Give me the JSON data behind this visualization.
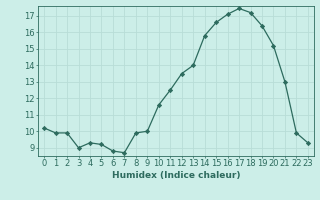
{
  "x": [
    0,
    1,
    2,
    3,
    4,
    5,
    6,
    7,
    8,
    9,
    10,
    11,
    12,
    13,
    14,
    15,
    16,
    17,
    18,
    19,
    20,
    21,
    22,
    23
  ],
  "y": [
    10.2,
    9.9,
    9.9,
    9.0,
    9.3,
    9.2,
    8.8,
    8.7,
    9.9,
    10.0,
    11.6,
    12.5,
    13.5,
    14.0,
    15.8,
    16.6,
    17.1,
    17.45,
    17.2,
    16.4,
    15.2,
    13.0,
    9.9,
    9.3
  ],
  "line_color": "#2d6b5e",
  "marker": "D",
  "marker_size": 2.2,
  "bg_color": "#cceee8",
  "grid_color": "#b8ddd7",
  "xlabel": "Humidex (Indice chaleur)",
  "xlim": [
    -0.5,
    23.5
  ],
  "ylim": [
    8.5,
    17.6
  ],
  "yticks": [
    9,
    10,
    11,
    12,
    13,
    14,
    15,
    16,
    17
  ],
  "xticks": [
    0,
    1,
    2,
    3,
    4,
    5,
    6,
    7,
    8,
    9,
    10,
    11,
    12,
    13,
    14,
    15,
    16,
    17,
    18,
    19,
    20,
    21,
    22,
    23
  ],
  "xlabel_fontsize": 6.5,
  "tick_fontsize": 6,
  "line_color_hex": "#2d6b5e",
  "spine_color": "#2d6b5e"
}
